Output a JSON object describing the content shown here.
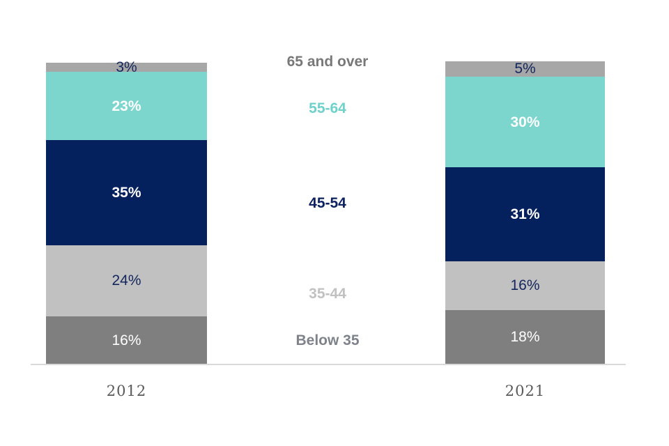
{
  "chart_data": {
    "type": "bar",
    "subtype": "stacked-percentage-column",
    "categories": [
      "2012",
      "2021"
    ],
    "series": [
      {
        "name": "65 and over",
        "values": [
          3,
          5
        ],
        "color": "#a7a7a7",
        "label_color": "#13265e",
        "label_bold": false
      },
      {
        "name": "55-64",
        "values": [
          23,
          30
        ],
        "color": "#7cd6ce",
        "label_color": "#ffffff",
        "label_bold": true
      },
      {
        "name": "45-54",
        "values": [
          35,
          31
        ],
        "color": "#04215e",
        "label_color": "#ffffff",
        "label_bold": true
      },
      {
        "name": "35-44",
        "values": [
          24,
          16
        ],
        "color": "#c1c1c1",
        "label_color": "#13265e",
        "label_bold": false
      },
      {
        "name": "Below 35",
        "values": [
          16,
          18
        ],
        "color": "#7f7f7f",
        "label_color": "#ffffff",
        "label_bold": false
      }
    ],
    "value_labels": [
      [
        "3%",
        "23%",
        "35%",
        "24%",
        "16%"
      ],
      [
        "5%",
        "30%",
        "31%",
        "16%",
        "18%"
      ]
    ],
    "legend": {
      "position": "center-between-bars",
      "items": [
        {
          "label": "65 and over",
          "color": "#787878"
        },
        {
          "label": "55-64",
          "color": "#6fd2ca"
        },
        {
          "label": "45-54",
          "color": "#0d2361"
        },
        {
          "label": "35-44",
          "color": "#c1c1c1"
        },
        {
          "label": "Below 35",
          "color": "#7e838b"
        }
      ]
    },
    "axis": {
      "baseline_color": "#d9d9d9",
      "category_label_color": "#595959"
    },
    "title": "",
    "grid": false,
    "ylim": [
      0,
      100
    ]
  }
}
